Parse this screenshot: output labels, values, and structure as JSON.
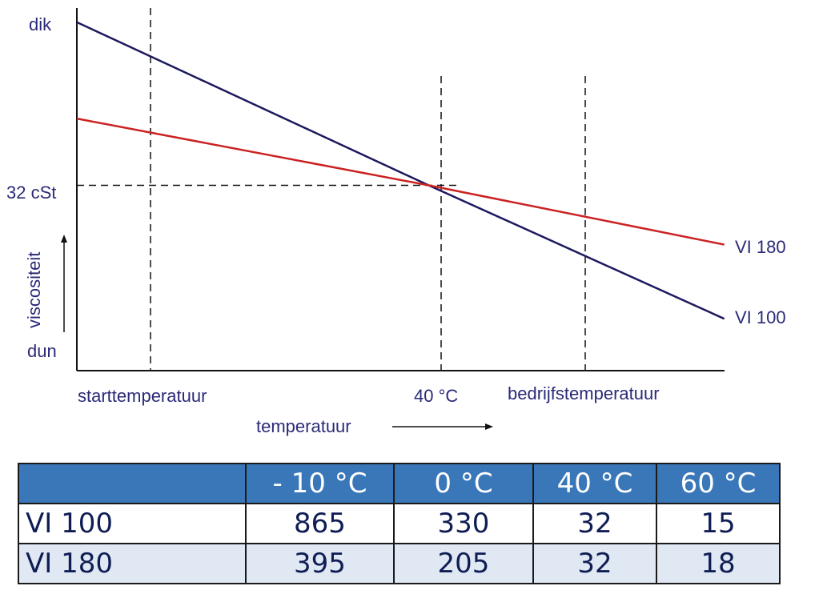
{
  "chart_data": {
    "type": "line",
    "xlabel": "temperatuur",
    "ylabel": "viscositeit",
    "y_top_label": "dik",
    "y_bottom_label": "dun",
    "y_ref_label": "32 cSt",
    "x_ticks": [
      "starttemperatuur",
      "40 °C",
      "bedrijfstemperatuur"
    ],
    "series": [
      {
        "name": "VI 100",
        "color": "#1c1a5e",
        "points": [
          [
            0,
            0.94
          ],
          [
            0.5,
            0.5
          ],
          [
            0.92,
            0.14
          ]
        ]
      },
      {
        "name": "VI 180",
        "color": "#cc2222",
        "points": [
          [
            0,
            0.68
          ],
          [
            0.5,
            0.5
          ],
          [
            0.92,
            0.34
          ]
        ]
      }
    ],
    "reference_lines": [
      "starttemperatuur",
      "40 °C",
      "bedrijfstemperatuur",
      "32 cSt"
    ],
    "grid": false
  },
  "table": {
    "headers": [
      "",
      "- 10 °C",
      "0 °C",
      "40 °C",
      "60 °C"
    ],
    "rows": [
      {
        "label": "VI 100",
        "values": [
          "865",
          "330",
          "32",
          "15"
        ]
      },
      {
        "label": "VI 180",
        "values": [
          "395",
          "205",
          "32",
          "18"
        ]
      }
    ]
  },
  "colors": {
    "axis_text": "#2b2a78",
    "vi100": "#1c1a5e",
    "vi180": "#cc2222",
    "header_bg": "#3a77b8",
    "alt_row_bg": "#dfe8f3"
  }
}
